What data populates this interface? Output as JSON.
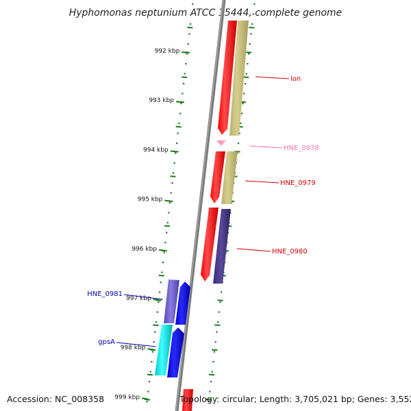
{
  "title": "Hyphomonas neptunium ATCC 15444, complete genome",
  "accession_label": "Accession: NC_008358",
  "genome_info": "Topology: circular; Length: 3,705,021 bp; Genes: 3,552",
  "ticks": [
    {
      "label": "992 kbp"
    },
    {
      "label": "993 kbp"
    },
    {
      "label": "994 kbp"
    },
    {
      "label": "995 kbp"
    },
    {
      "label": "996 kbp"
    },
    {
      "label": "997 kbp"
    },
    {
      "label": "998 kbp"
    },
    {
      "label": "999 kbp"
    }
  ],
  "genes": [
    {
      "name": "lon",
      "color": "#cc0000"
    },
    {
      "name": "HNE_0978",
      "color": "#ee77aa"
    },
    {
      "name": "HNE_0979",
      "color": "#cc0000"
    },
    {
      "name": "HNE_0980",
      "color": "#cc0000"
    },
    {
      "name": "HNE_0981",
      "color": "#0000aa"
    },
    {
      "name": "gpsA",
      "color": "#0000aa"
    }
  ],
  "colors": {
    "backbone": "#808080",
    "tick_marks": "#1a7a1a",
    "red_feature": "#ff0000",
    "olive_feature": "#c8c07a",
    "navy_feature": "#4a3a8a",
    "blue_feature": "#0000ee",
    "purple_feature": "#6a5acd",
    "cyan_feature": "#00dddd",
    "pink_feature": "#ff99cc"
  }
}
